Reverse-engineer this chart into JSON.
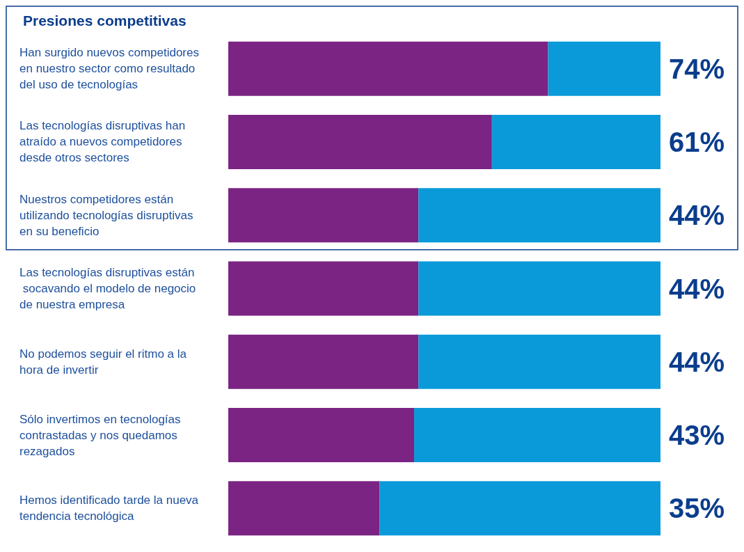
{
  "chart_data": {
    "type": "bar",
    "title": "Presiones competitivas",
    "categories": [
      "Han surgido nuevos competidores en nuestro sector como resultado del uso de tecnologías",
      "Las tecnologías disruptivas han atraído a nuevos competidores desde otros sectores",
      "Nuestros competidores están utilizando tecnologías disruptivas en su beneficio",
      "Las tecnologías disruptivas están socavando el modelo de negocio de nuestra empresa",
      "No podemos seguir el ritmo a la hora de invertir",
      "Sólo invertimos en tecnologías contrastadas y nos quedamos rezagados",
      "Hemos identificado tarde la nueva tendencia tecnológica"
    ],
    "series": [
      {
        "color": "#7b2483",
        "values": [
          74,
          61,
          44,
          44,
          44,
          43,
          35
        ],
        "value_labels": [
          "74%",
          "61%",
          "44%",
          "44%",
          "44%",
          "43%",
          "35%"
        ]
      },
      {
        "color": "#0a9ad9",
        "values": [
          26,
          39,
          56,
          56,
          56,
          57,
          65
        ]
      }
    ],
    "stacked": true,
    "orientation": "horizontal",
    "xlim": [
      0,
      100
    ],
    "tick_labels": "y",
    "grid": false
  }
}
